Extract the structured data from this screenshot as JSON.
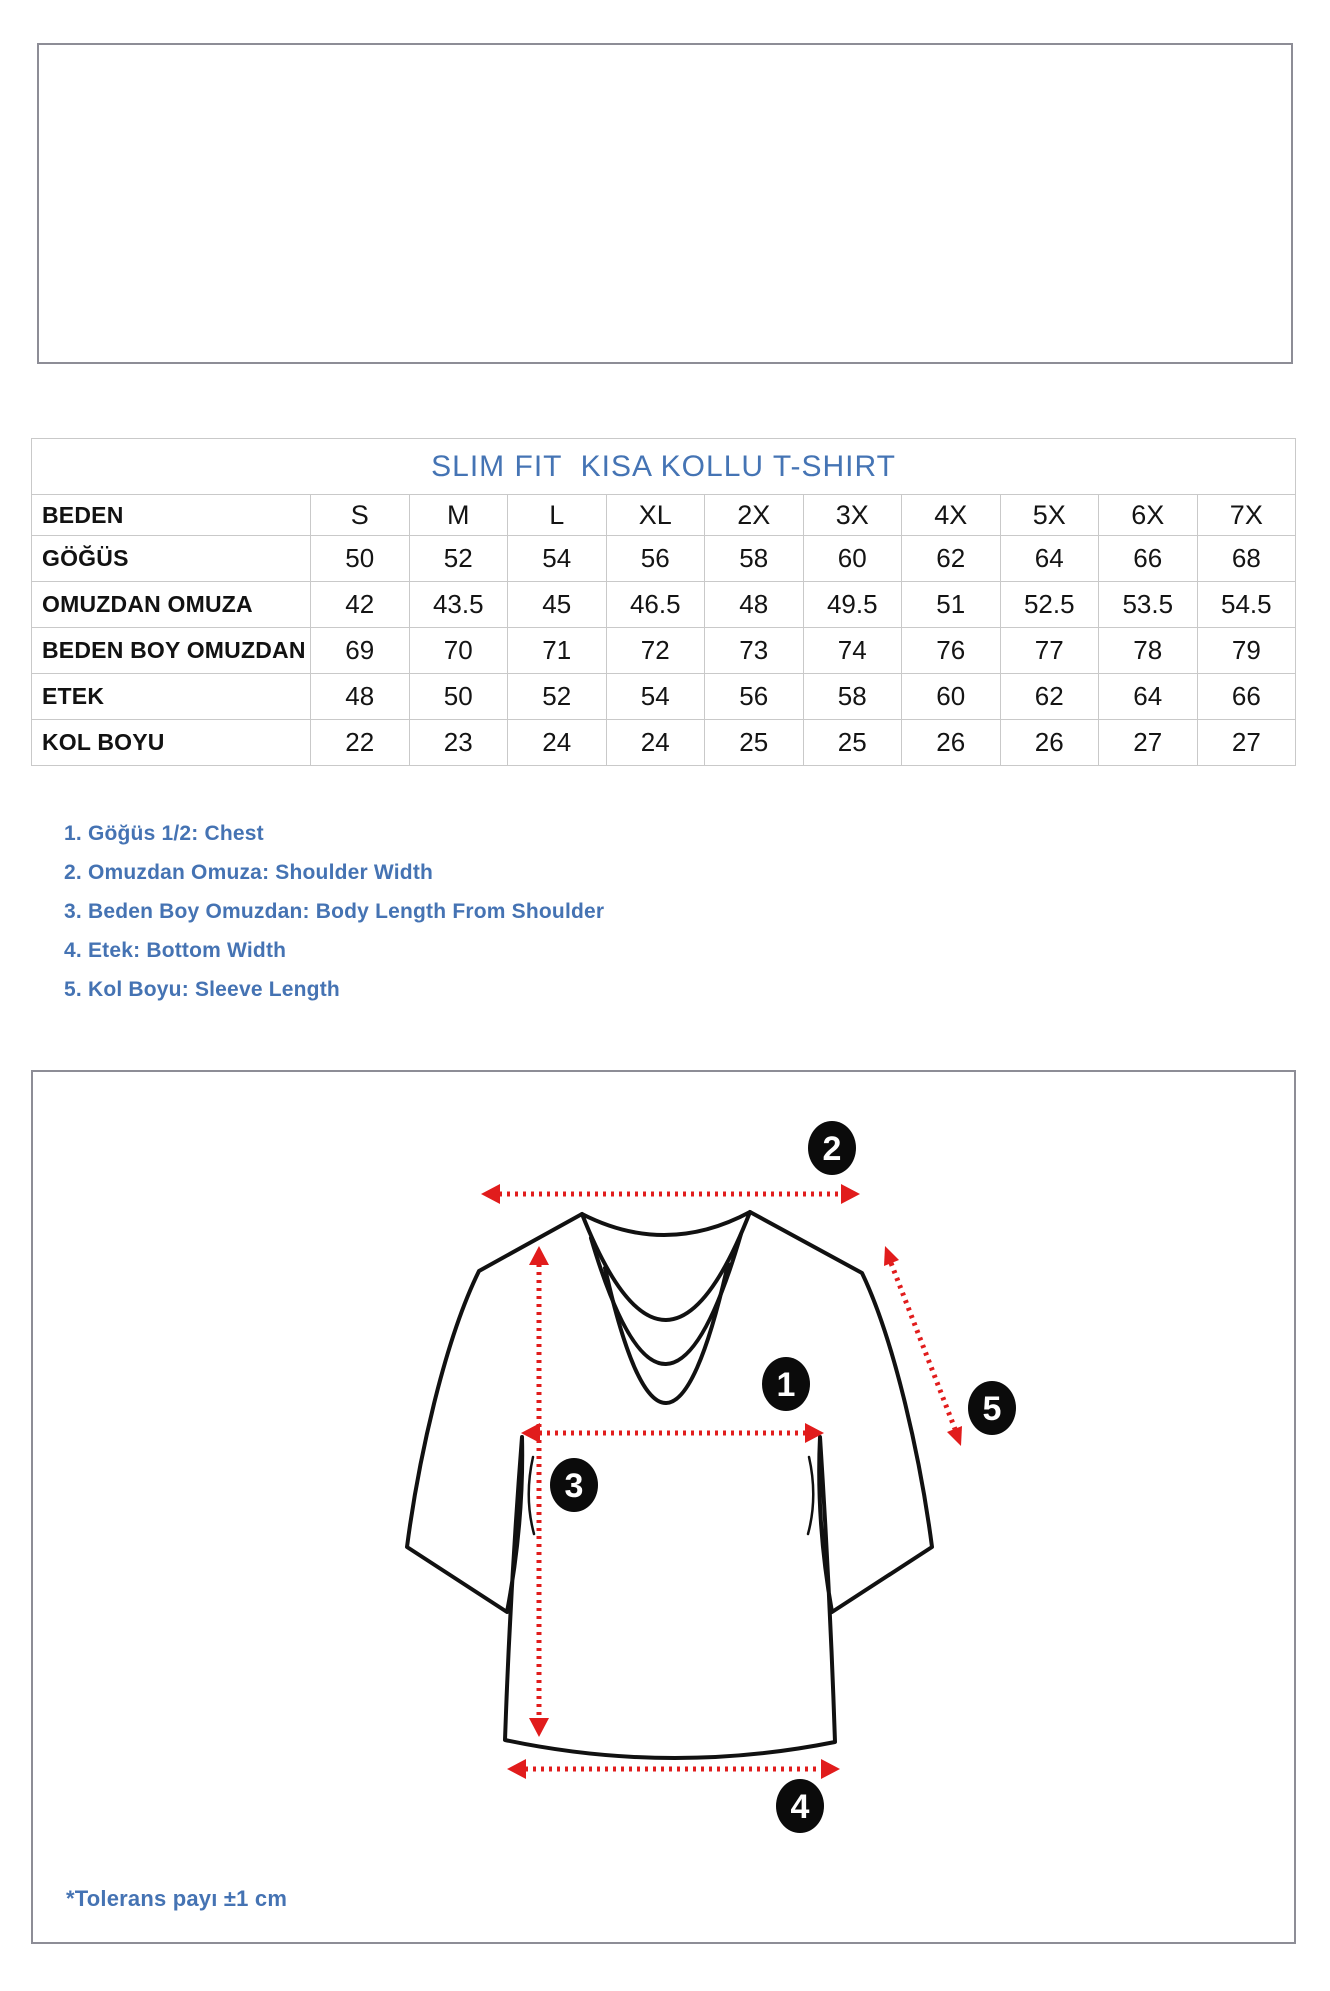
{
  "size_chart": {
    "title": "SLIM FIT  KISA KOLLU T-SHIRT",
    "header_label": "BEDEN",
    "sizes": [
      "S",
      "M",
      "L",
      "XL",
      "2X",
      "3X",
      "4X",
      "5X",
      "6X",
      "7X"
    ],
    "rows": [
      {
        "label": "GÖĞÜS",
        "values": [
          "50",
          "52",
          "54",
          "56",
          "58",
          "60",
          "62",
          "64",
          "66",
          "68"
        ]
      },
      {
        "label": "OMUZDAN OMUZA",
        "values": [
          "42",
          "43.5",
          "45",
          "46.5",
          "48",
          "49.5",
          "51",
          "52.5",
          "53.5",
          "54.5"
        ]
      },
      {
        "label": "BEDEN BOY OMUZDAN",
        "values": [
          "69",
          "70",
          "71",
          "72",
          "73",
          "74",
          "76",
          "77",
          "78",
          "79"
        ]
      },
      {
        "label": "ETEK",
        "values": [
          "48",
          "50",
          "52",
          "54",
          "56",
          "58",
          "60",
          "62",
          "64",
          "66"
        ]
      },
      {
        "label": "KOL BOYU",
        "values": [
          "22",
          "23",
          "24",
          "24",
          "25",
          "25",
          "26",
          "26",
          "27",
          "27"
        ]
      }
    ]
  },
  "legend": {
    "items": [
      "1. Göğüs 1/2: Chest",
      "2. Omuzdan Omuza: Shoulder Width",
      "3. Beden Boy Omuzdan: Body Length From Shoulder",
      "4. Etek: Bottom Width",
      "5. Kol Boyu: Sleeve Length"
    ]
  },
  "diagram": {
    "markers": [
      {
        "label": "1"
      },
      {
        "label": "2"
      },
      {
        "label": "3"
      },
      {
        "label": "4"
      },
      {
        "label": "5"
      }
    ]
  },
  "footnote": "*Tolerans payı ±1 cm",
  "colors": {
    "accent_blue": "#4573b3",
    "arrow_red": "#e11c1c",
    "panel_border_gray": "#8d8d96",
    "table_border_gray": "#c9c9c9",
    "text_black": "#141414"
  },
  "chart_data": {
    "type": "table",
    "title": "SLIM FIT  KISA KOLLU T-SHIRT",
    "columns": [
      "BEDEN",
      "S",
      "M",
      "L",
      "XL",
      "2X",
      "3X",
      "4X",
      "5X",
      "6X",
      "7X"
    ],
    "rows": [
      [
        "GÖĞÜS",
        50,
        52,
        54,
        56,
        58,
        60,
        62,
        64,
        66,
        68
      ],
      [
        "OMUZDAN OMUZA",
        42,
        43.5,
        45,
        46.5,
        48,
        49.5,
        51,
        52.5,
        53.5,
        54.5
      ],
      [
        "BEDEN BOY OMUZDAN",
        69,
        70,
        71,
        72,
        73,
        74,
        76,
        77,
        78,
        79
      ],
      [
        "ETEK",
        48,
        50,
        52,
        54,
        56,
        58,
        60,
        62,
        64,
        66
      ],
      [
        "KOL BOYU",
        22,
        23,
        24,
        24,
        25,
        25,
        26,
        26,
        27,
        27
      ]
    ]
  }
}
